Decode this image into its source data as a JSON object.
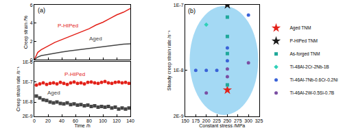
{
  "chart_data": [
    {
      "type": "line",
      "title": "(a)",
      "y_label": "Creep strain /%",
      "tick_labels": "y",
      "xlim": [
        0,
        140
      ],
      "xticks": [
        0,
        20,
        40,
        60,
        80,
        100,
        120,
        140
      ],
      "ylim": [
        0,
        6
      ],
      "yticks": [
        0,
        2,
        4,
        6
      ],
      "series": [
        {
          "name": "P-HIPed",
          "color": "#e32119",
          "line_style": "solid",
          "x": [
            0,
            5,
            10,
            20,
            30,
            40,
            50,
            60,
            70,
            80,
            90,
            100,
            110,
            120,
            130,
            140
          ],
          "values": [
            0,
            0.8,
            1.1,
            1.5,
            1.9,
            2.2,
            2.5,
            2.8,
            3.1,
            3.4,
            3.8,
            4.1,
            4.5,
            4.9,
            5.2,
            5.6
          ]
        },
        {
          "name": "Aged",
          "color": "#444444",
          "line_style": "solid",
          "x": [
            0,
            5,
            10,
            20,
            30,
            40,
            50,
            60,
            70,
            80,
            90,
            100,
            110,
            120,
            130,
            140
          ],
          "values": [
            0,
            0.3,
            0.45,
            0.6,
            0.75,
            0.85,
            0.95,
            1.05,
            1.15,
            1.25,
            1.35,
            1.45,
            1.55,
            1.6,
            1.7,
            1.75
          ]
        }
      ]
    },
    {
      "type": "scatter",
      "x_label": "Time /h",
      "y_label": "Creep strain rate /s⁻¹",
      "log": "y",
      "xlim": [
        0,
        140
      ],
      "xticks": [
        0,
        20,
        40,
        60,
        80,
        100,
        120,
        140
      ],
      "ylim": [
        2e-09,
        1e-06
      ],
      "yticks": [
        {
          "value": 2e-09,
          "label": "2E-9"
        },
        {
          "value": 1e-08,
          "label": "1E-8"
        },
        {
          "value": 1e-07,
          "label": "1E-7"
        },
        {
          "value": 1e-06,
          "label": "1E-6"
        }
      ],
      "series": [
        {
          "name": "P-HIPed",
          "color": "#e32119",
          "marker": "circle",
          "x": [
            3,
            8,
            13,
            18,
            23,
            28,
            33,
            38,
            43,
            48,
            53,
            58,
            63,
            68,
            73,
            78,
            83,
            88,
            93,
            98,
            103,
            108,
            113,
            118,
            123,
            128,
            133,
            138
          ],
          "values": [
            7e-08,
            8e-08,
            9e-08,
            7.5e-08,
            8.5e-08,
            9e-08,
            8e-08,
            9.5e-08,
            8.5e-08,
            7.5e-08,
            9e-08,
            1e-07,
            8.5e-08,
            9e-08,
            8e-08,
            9.5e-08,
            1e-07,
            9e-08,
            8.5e-08,
            9.5e-08,
            1.05e-07,
            9e-08,
            8.5e-08,
            9.5e-08,
            1e-07,
            9e-08,
            9.5e-08,
            8.5e-08
          ]
        },
        {
          "name": "Aged",
          "color": "#444444",
          "marker": "square",
          "x": [
            3,
            8,
            13,
            18,
            23,
            28,
            33,
            38,
            43,
            48,
            53,
            58,
            63,
            68,
            73,
            78,
            83,
            88,
            93,
            98,
            103,
            108,
            113,
            118,
            123,
            128,
            133,
            138
          ],
          "values": [
            2e-08,
            1.6e-08,
            1.3e-08,
            1.2e-08,
            1e-08,
            9e-09,
            1e-08,
            8.5e-09,
            8e-09,
            9e-09,
            7.5e-09,
            8e-09,
            7e-09,
            7.5e-09,
            6.5e-09,
            7e-09,
            6e-09,
            6.5e-09,
            5.5e-09,
            6e-09,
            5.5e-09,
            6e-09,
            5e-09,
            5.5e-09,
            4.5e-09,
            5e-09,
            4.5e-09,
            5e-09
          ]
        }
      ]
    },
    {
      "type": "scatter",
      "title": "(b)",
      "x_label": "Constant stress /MPa",
      "y_label": "Steady creep strain rate /s⁻¹",
      "log": "y",
      "legend": "right",
      "xlim": [
        150,
        325
      ],
      "xticks": [
        150,
        175,
        200,
        225,
        250,
        275,
        300,
        325
      ],
      "ylim": [
        2e-09,
        1e-07
      ],
      "yticks": [
        {
          "value": 2e-09,
          "label": "2E-9"
        },
        {
          "value": 1e-08,
          "label": "1E-8"
        },
        {
          "value": 1e-07,
          "label": "1E-7"
        }
      ],
      "series": [
        {
          "name": "Aged TNM",
          "color": "#e32119",
          "marker": "star",
          "x": [
            250
          ],
          "values": [
            5e-09
          ]
        },
        {
          "name": "P-HIPed TNM",
          "color": "#1a1a1a",
          "marker": "star",
          "x": [
            250
          ],
          "values": [
            1e-07
          ]
        },
        {
          "name": "As-forged TNM",
          "color": "#1fa89a",
          "marker": "square",
          "x": [
            250,
            250,
            250,
            250
          ],
          "values": [
            6.5e-08,
            3.3e-08,
            1.8e-08,
            6e-09
          ]
        },
        {
          "name": "Ti-48Al-2Cr-2Nb-1B",
          "color": "#2fd0b8",
          "marker": "diamond",
          "x": [
            200
          ],
          "values": [
            5e-08
          ]
        },
        {
          "name": "Ti-46Al-7Nb-0.6Cr-0.2Ni",
          "color": "#3a63d8",
          "marker": "circle",
          "x": [
            175,
            200,
            225,
            250,
            250,
            300
          ],
          "values": [
            1e-08,
            1e-08,
            1e-08,
            2.2e-08,
            1.4e-08,
            7e-08
          ]
        },
        {
          "name": "Ti-46Al-2W-0.5Si-0.7B",
          "color": "#7b4fa3",
          "marker": "circle",
          "x": [
            200,
            250,
            250,
            300
          ],
          "values": [
            4.5e-09,
            8e-09,
            1.05e-08,
            1.3e-08
          ]
        }
      ]
    }
  ]
}
